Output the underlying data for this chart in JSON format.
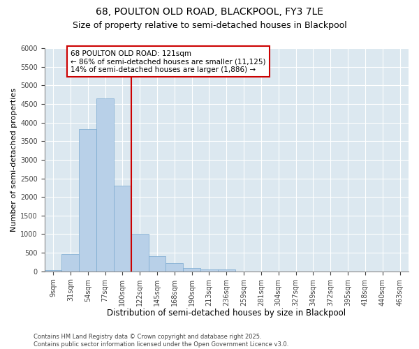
{
  "title1": "68, POULTON OLD ROAD, BLACKPOOL, FY3 7LE",
  "title2": "Size of property relative to semi-detached houses in Blackpool",
  "xlabel": "Distribution of semi-detached houses by size in Blackpool",
  "ylabel": "Number of semi-detached properties",
  "categories": [
    "9sqm",
    "31sqm",
    "54sqm",
    "77sqm",
    "100sqm",
    "122sqm",
    "145sqm",
    "168sqm",
    "190sqm",
    "213sqm",
    "236sqm",
    "259sqm",
    "281sqm",
    "304sqm",
    "327sqm",
    "349sqm",
    "372sqm",
    "395sqm",
    "418sqm",
    "440sqm",
    "463sqm"
  ],
  "values": [
    30,
    460,
    3820,
    4650,
    2300,
    1010,
    410,
    220,
    80,
    60,
    50,
    0,
    0,
    0,
    0,
    0,
    0,
    0,
    0,
    0,
    0
  ],
  "bar_color": "#b8d0e8",
  "bar_edge_color": "#7aaad0",
  "vline_color": "#cc0000",
  "annotation_text": "68 POULTON OLD ROAD: 121sqm\n← 86% of semi-detached houses are smaller (11,125)\n14% of semi-detached houses are larger (1,886) →",
  "annotation_box_color": "white",
  "annotation_box_edge": "#cc0000",
  "ylim": [
    0,
    6000
  ],
  "yticks": [
    0,
    500,
    1000,
    1500,
    2000,
    2500,
    3000,
    3500,
    4000,
    4500,
    5000,
    5500,
    6000
  ],
  "background_color": "#dce8f0",
  "footer": "Contains HM Land Registry data © Crown copyright and database right 2025.\nContains public sector information licensed under the Open Government Licence v3.0.",
  "title1_fontsize": 10,
  "title2_fontsize": 9,
  "xlabel_fontsize": 8.5,
  "ylabel_fontsize": 8,
  "tick_fontsize": 7,
  "annotation_fontsize": 7.5,
  "footer_fontsize": 6
}
